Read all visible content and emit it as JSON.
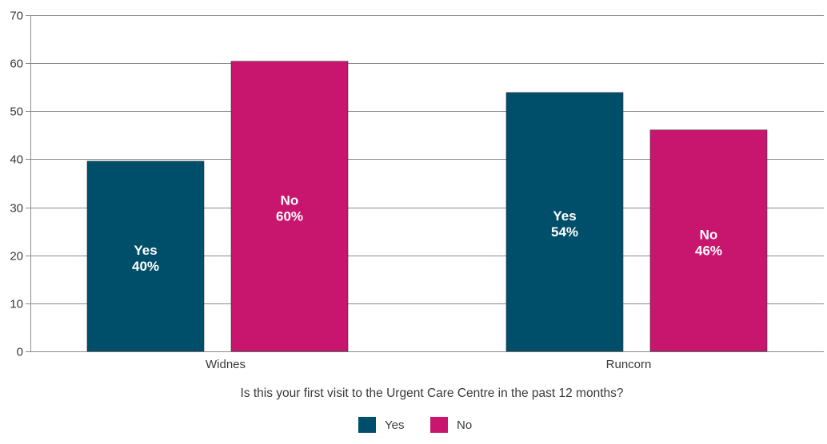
{
  "chart_data": {
    "type": "bar",
    "categories": [
      "Widnes",
      "Runcorn"
    ],
    "series": [
      {
        "name": "Yes",
        "values": [
          39.6,
          53.9
        ],
        "labels": [
          "Yes\n40%",
          "Yes\n54%"
        ],
        "color": "#004f6a"
      },
      {
        "name": "No",
        "values": [
          60.4,
          46.1
        ],
        "labels": [
          "No\n60%",
          "No\n46%"
        ],
        "color": "#c8166e"
      }
    ],
    "title": "",
    "xlabel": "Is this your first visit to the Urgent Care Centre in the past 12 months?",
    "ylabel": "",
    "ylim": [
      0,
      70
    ],
    "yticks": [
      0,
      10,
      20,
      30,
      40,
      50,
      60,
      70
    ],
    "grid": true,
    "legend": "bottom-center"
  }
}
